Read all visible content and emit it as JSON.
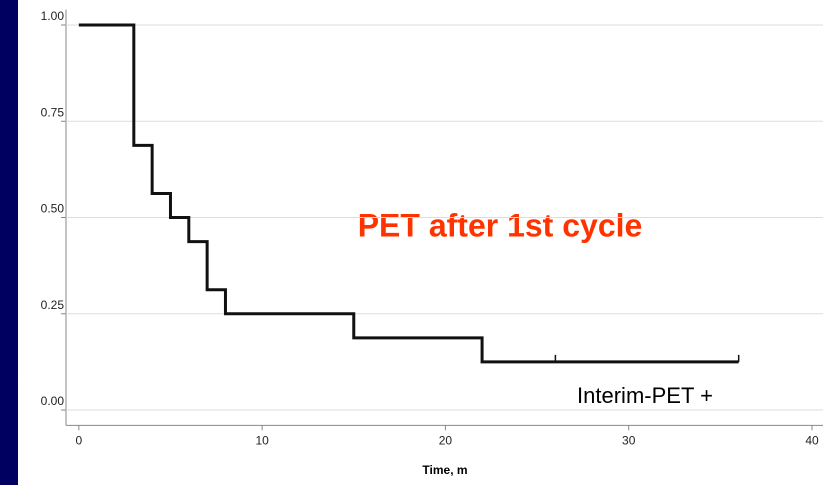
{
  "chart_data": {
    "type": "step",
    "x_label": "Time, m",
    "x": [
      0,
      3,
      4,
      5,
      6,
      7,
      8,
      15,
      22,
      36
    ],
    "values": [
      1,
      0.6875,
      0.5625,
      0.5,
      0.4375,
      0.3125,
      0.25,
      0.1875,
      0.125,
      0.125
    ],
    "censor_x": [
      26,
      36
    ],
    "censor_values": [
      0.125,
      0.125
    ],
    "color": "#111111",
    "xlim": [
      -0.7,
      40.6
    ],
    "ylim": [
      -0.04,
      1.04
    ],
    "xticks": [
      0,
      10,
      20,
      30,
      40
    ],
    "yticks": [
      {
        "value": 0,
        "label": "0.00"
      },
      {
        "value": 0.25,
        "label": "0.25"
      },
      {
        "value": 0.5,
        "label": "0.50"
      },
      {
        "value": 0.75,
        "label": "0.75"
      },
      {
        "value": 1,
        "label": "1.00"
      }
    ],
    "grid": true,
    "annotations": [
      {
        "text": "PET after 1st cycle",
        "color": "#ff3300"
      },
      {
        "text": "Interim-PET +",
        "color": "#000000"
      }
    ]
  }
}
